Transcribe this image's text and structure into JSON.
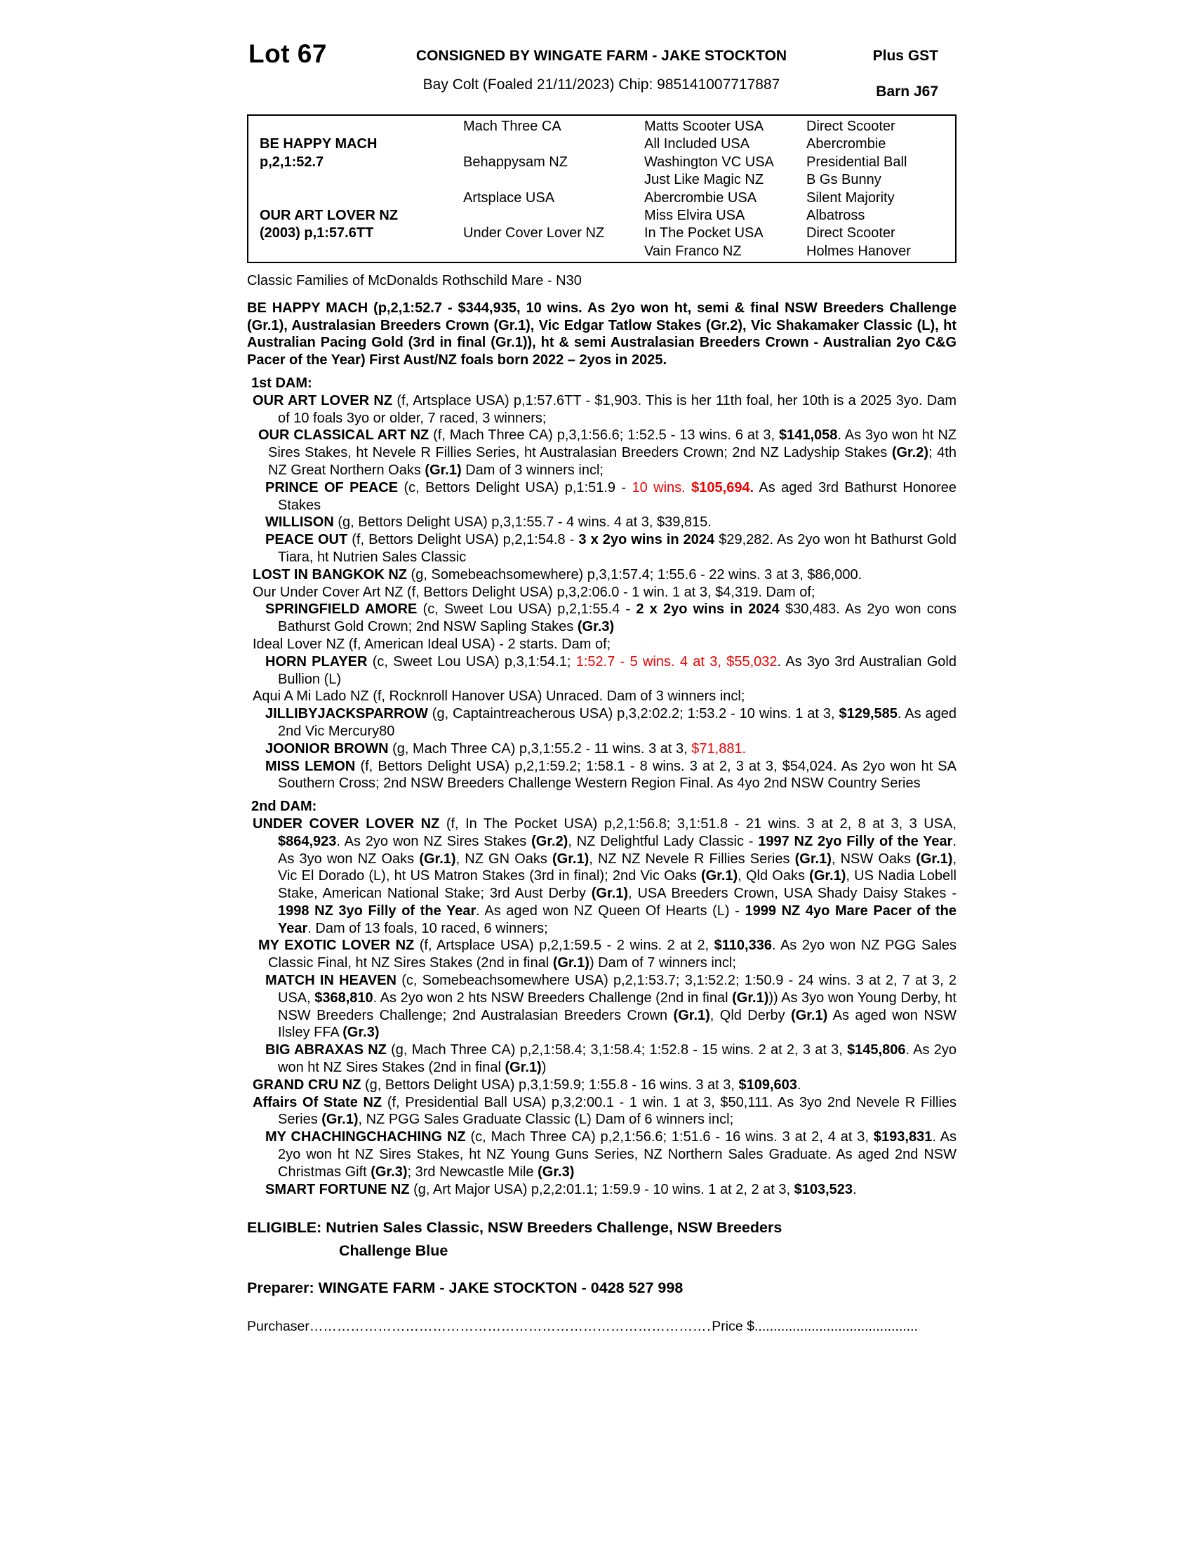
{
  "header": {
    "lot": "Lot 67",
    "consigned": "CONSIGNED BY WINGATE FARM - JAKE STOCKTON",
    "plus_gst": "Plus GST",
    "description": "Bay Colt (Foaled 21/11/2023) Chip: 985141007717887",
    "barn": "Barn J67"
  },
  "colors": {
    "accent_red": "#ee0000",
    "text": "#000000"
  },
  "pedigree_table": {
    "sire": {
      "name": "BE HAPPY MACH",
      "record": "p,2,1:52.7"
    },
    "dam": {
      "name": "OUR ART LOVER NZ",
      "record": "(2003) p,1:57.6TT"
    },
    "gen2": [
      "Mach Three CA",
      "Behappysam NZ",
      "Artsplace USA",
      "Under Cover Lover NZ"
    ],
    "gen3": [
      "Matts Scooter USA",
      "All Included USA",
      "Washington VC USA",
      "Just Like Magic NZ",
      "Abercrombie USA",
      "Miss Elvira USA",
      "In The Pocket USA",
      "Vain Franco NZ"
    ],
    "gen4": [
      "Direct Scooter",
      "Abercrombie",
      "Presidential Ball",
      "B Gs Bunny",
      "Silent Majority",
      "Albatross",
      "Direct Scooter",
      "Holmes Hanover"
    ]
  },
  "family_note": "Classic Families of McDonalds Rothschild Mare - N30",
  "sire_paragraph": "BE HAPPY MACH (p,2,1:52.7 - $344,935, 10 wins. As 2yo won ht, semi & final NSW Breeders Challenge (Gr.1), Australasian Breeders Crown (Gr.1), Vic Edgar Tatlow Stakes (Gr.2), Vic Shakamaker Classic (L), ht Australian Pacing Gold (3rd in final (Gr.1)), ht & semi Australasian Breeders Crown - Australian 2yo C&G Pacer of the Year) First Aust/NZ foals born 2022 – 2yos in 2025.",
  "notes": [
    {
      "type": "heading",
      "text": "1st DAM:"
    },
    {
      "type": "para",
      "indent": 0,
      "segments": [
        {
          "t": "OUR ART LOVER NZ ",
          "b": true
        },
        {
          "t": "(f, Artsplace USA) p,1:57.6TT - $1,903. This is her 11th foal, her 10th is a 2025 3yo. Dam of 10 foals 3yo or older, 7 raced, 3 winners;"
        }
      ]
    },
    {
      "type": "para",
      "indent": 1,
      "segments": [
        {
          "t": "OUR CLASSICAL ART NZ ",
          "b": true
        },
        {
          "t": "(f, Mach Three CA) p,3,1:56.6; 1:52.5 - 13 wins. 6 at 3, "
        },
        {
          "t": "$141,058",
          "b": true
        },
        {
          "t": ". As 3yo won ht NZ Sires Stakes, ht Nevele R Fillies Series, ht Australasian Breeders Crown; 2nd NZ Ladyship Stakes "
        },
        {
          "t": "(Gr.2)",
          "b": true
        },
        {
          "t": "; 4th NZ Great Northern Oaks "
        },
        {
          "t": "(Gr.1)",
          "b": true
        },
        {
          "t": "  Dam of 3 winners incl;"
        }
      ]
    },
    {
      "type": "para",
      "indent": 2,
      "segments": [
        {
          "t": "PRINCE OF PEACE ",
          "b": true
        },
        {
          "t": "(c, Bettors Delight USA) p,1:51.9 - "
        },
        {
          "t": "10 wins. ",
          "r": true
        },
        {
          "t": "$105,694.",
          "r": true,
          "b": true
        },
        {
          "t": " As aged 3rd Bathurst Honoree Stakes"
        }
      ]
    },
    {
      "type": "para",
      "indent": 2,
      "segments": [
        {
          "t": "WILLISON ",
          "b": true
        },
        {
          "t": "(g, Bettors Delight USA) p,3,1:55.7 - 4 wins. 4 at 3, $39,815."
        }
      ]
    },
    {
      "type": "para",
      "indent": 2,
      "segments": [
        {
          "t": "PEACE OUT ",
          "b": true
        },
        {
          "t": "(f, Bettors Delight USA) p,2,1:54.8 - "
        },
        {
          "t": "3 x 2yo wins in 2024",
          "b": true
        },
        {
          "t": "  $29,282. As 2yo won ht Bathurst Gold Tiara, ht Nutrien Sales Classic"
        }
      ]
    },
    {
      "type": "para",
      "indent": 0,
      "segments": [
        {
          "t": "LOST IN BANGKOK NZ ",
          "b": true
        },
        {
          "t": "(g, Somebeachsomewhere) p,3,1:57.4; 1:55.6 - 22 wins. 3 at 3, $86,000."
        }
      ]
    },
    {
      "type": "para",
      "indent": 0,
      "segments": [
        {
          "t": "Our Under Cover Art NZ (f, Bettors Delight USA) p,3,2:06.0 - 1 win. 1 at 3, $4,319. Dam of;"
        }
      ]
    },
    {
      "type": "para",
      "indent": 2,
      "segments": [
        {
          "t": "SPRINGFIELD AMORE ",
          "b": true
        },
        {
          "t": "(c, Sweet Lou USA) p,2,1:55.4 - "
        },
        {
          "t": "2 x 2yo wins in 2024",
          "b": true
        },
        {
          "t": " $30,483. As 2yo won cons Bathurst Gold Crown; 2nd NSW Sapling Stakes "
        },
        {
          "t": "(Gr.3)",
          "b": true
        }
      ]
    },
    {
      "type": "para",
      "indent": 0,
      "segments": [
        {
          "t": "Ideal Lover NZ (f, American Ideal USA) - 2 starts. Dam of;"
        }
      ]
    },
    {
      "type": "para",
      "indent": 2,
      "segments": [
        {
          "t": "HORN PLAYER ",
          "b": true
        },
        {
          "t": "(c, Sweet Lou USA) p,3,1:54.1; "
        },
        {
          "t": "1:52.7 - 5 wins. 4 at 3, $55,032",
          "r": true
        },
        {
          "t": ". As 3yo 3rd Australian Gold Bullion (L)"
        }
      ]
    },
    {
      "type": "para",
      "indent": 0,
      "segments": [
        {
          "t": "Aqui A Mi Lado NZ (f, Rocknroll Hanover USA) Unraced. Dam of 3 winners incl;"
        }
      ]
    },
    {
      "type": "para",
      "indent": 2,
      "segments": [
        {
          "t": "JILLIBYJACKSPARROW ",
          "b": true
        },
        {
          "t": "(g, Captaintreacherous USA) p,3,2:02.2; 1:53.2 - 10 wins. 1 at 3, "
        },
        {
          "t": "$129,585",
          "b": true
        },
        {
          "t": ". As aged 2nd Vic Mercury80"
        }
      ]
    },
    {
      "type": "para",
      "indent": 2,
      "segments": [
        {
          "t": "JOONIOR BROWN ",
          "b": true
        },
        {
          "t": "(g, Mach Three CA) p,3,1:55.2 - 11 wins. 3 at 3, "
        },
        {
          "t": "$71,881.",
          "r": true
        }
      ]
    },
    {
      "type": "para",
      "indent": 2,
      "segments": [
        {
          "t": "MISS LEMON ",
          "b": true
        },
        {
          "t": "(f, Bettors Delight USA) p,2,1:59.2; 1:58.1 - 8 wins. 3 at 2, 3 at 3, $54,024. As 2yo won ht SA Southern Cross; 2nd NSW Breeders Challenge Western Region Final. As 4yo 2nd NSW Country Series"
        }
      ]
    },
    {
      "type": "heading",
      "text": "2nd DAM:"
    },
    {
      "type": "para",
      "indent": 0,
      "segments": [
        {
          "t": "UNDER COVER LOVER NZ ",
          "b": true
        },
        {
          "t": "(f, In The Pocket USA) p,2,1:56.8; 3,1:51.8 - 21 wins. 3 at 2, 8 at 3, 3 USA, "
        },
        {
          "t": "$864,923",
          "b": true
        },
        {
          "t": ". As 2yo won NZ Sires Stakes "
        },
        {
          "t": "(Gr.2)",
          "b": true
        },
        {
          "t": ", NZ Delightful Lady Classic - "
        },
        {
          "t": "1997 NZ 2yo Filly of the Year",
          "b": true
        },
        {
          "t": ". As 3yo won NZ Oaks "
        },
        {
          "t": "(Gr.1)",
          "b": true
        },
        {
          "t": ", NZ GN Oaks "
        },
        {
          "t": "(Gr.1)",
          "b": true
        },
        {
          "t": ", NZ NZ Nevele R Fillies Series "
        },
        {
          "t": "(Gr.1)",
          "b": true
        },
        {
          "t": ", NSW Oaks "
        },
        {
          "t": "(Gr.1)",
          "b": true
        },
        {
          "t": ", Vic El Dorado (L), ht US Matron Stakes (3rd in final); 2nd Vic Oaks "
        },
        {
          "t": "(Gr.1)",
          "b": true
        },
        {
          "t": ", Qld Oaks "
        },
        {
          "t": "(Gr.1)",
          "b": true
        },
        {
          "t": ", US Nadia Lobell Stake, American National Stake; 3rd Aust Derby "
        },
        {
          "t": "(Gr.1)",
          "b": true
        },
        {
          "t": ", USA Breeders Crown, USA Shady Daisy Stakes - "
        },
        {
          "t": "1998 NZ 3yo Filly of the Year",
          "b": true
        },
        {
          "t": ". As aged won NZ Queen Of Hearts (L) - "
        },
        {
          "t": "1999 NZ 4yo Mare Pacer of the Year",
          "b": true
        },
        {
          "t": ". Dam of 13 foals, 10 raced, 6 winners;"
        }
      ]
    },
    {
      "type": "para",
      "indent": 1,
      "segments": [
        {
          "t": "MY EXOTIC LOVER NZ ",
          "b": true
        },
        {
          "t": "(f, Artsplace USA) p,2,1:59.5 - 2 wins. 2 at 2, "
        },
        {
          "t": "$110,336",
          "b": true
        },
        {
          "t": ". As 2yo won NZ PGG Sales Classic Final, ht NZ Sires Stakes (2nd in final "
        },
        {
          "t": "(Gr.1)",
          "b": true
        },
        {
          "t": ") Dam of 7 winners incl;"
        }
      ]
    },
    {
      "type": "para",
      "indent": 2,
      "segments": [
        {
          "t": "MATCH IN HEAVEN ",
          "b": true
        },
        {
          "t": "(c, Somebeachsomewhere USA) p,2,1:53.7; 3,1:52.2; 1:50.9 - 24 wins. 3 at 2, 7 at 3, 2 USA, "
        },
        {
          "t": "$368,810",
          "b": true
        },
        {
          "t": ". As 2yo won 2 hts NSW Breeders Challenge (2nd in final "
        },
        {
          "t": "(Gr.1)",
          "b": true
        },
        {
          "t": ")) As 3yo won Young Derby, ht NSW Breeders Challenge; 2nd Australasian Breeders Crown "
        },
        {
          "t": "(Gr.1)",
          "b": true
        },
        {
          "t": ", Qld Derby "
        },
        {
          "t": "(Gr.1)",
          "b": true
        },
        {
          "t": " As aged won NSW Ilsley FFA "
        },
        {
          "t": "(Gr.3)",
          "b": true
        }
      ]
    },
    {
      "type": "para",
      "indent": 2,
      "segments": [
        {
          "t": "BIG ABRAXAS NZ ",
          "b": true
        },
        {
          "t": "(g, Mach Three CA) p,2,1:58.4; 3,1:58.4; 1:52.8 - 15 wins. 2 at 2, 3 at 3, "
        },
        {
          "t": "$145,806",
          "b": true
        },
        {
          "t": ". As 2yo won ht NZ Sires Stakes (2nd in final "
        },
        {
          "t": "(Gr.1)",
          "b": true
        },
        {
          "t": ")"
        }
      ]
    },
    {
      "type": "para",
      "indent": 0,
      "segments": [
        {
          "t": "GRAND CRU NZ ",
          "b": true
        },
        {
          "t": "(g, Bettors Delight USA) p,3,1:59.9; 1:55.8 - 16 wins. 3 at 3, "
        },
        {
          "t": "$109,603",
          "b": true
        },
        {
          "t": "."
        }
      ]
    },
    {
      "type": "para",
      "indent": 0,
      "segments": [
        {
          "t": "Affairs Of State NZ ",
          "b": true
        },
        {
          "t": "(f, Presidential Ball USA) p,3,2:00.1 - 1 win. 1 at 3, $50,111. As 3yo 2nd Nevele R Fillies Series "
        },
        {
          "t": "(Gr.1)",
          "b": true
        },
        {
          "t": ", NZ PGG Sales Graduate Classic (L) Dam of 6 winners incl;"
        }
      ]
    },
    {
      "type": "para",
      "indent": 2,
      "segments": [
        {
          "t": "MY CHACHINGCHACHING NZ ",
          "b": true
        },
        {
          "t": "(c, Mach Three CA) p,2,1:56.6; 1:51.6 - 16 wins. 3 at 2, 4 at 3, "
        },
        {
          "t": "$193,831",
          "b": true
        },
        {
          "t": ". As 2yo won ht NZ Sires Stakes, ht NZ Young Guns Series, NZ Northern Sales Graduate. As aged 2nd NSW Christmas Gift "
        },
        {
          "t": "(Gr.3)",
          "b": true
        },
        {
          "t": "; 3rd Newcastle Mile "
        },
        {
          "t": "(Gr.3)",
          "b": true
        }
      ]
    },
    {
      "type": "para",
      "indent": 2,
      "segments": [
        {
          "t": "SMART FORTUNE NZ ",
          "b": true
        },
        {
          "t": "(g, Art Major USA) p,2,2:01.1; 1:59.9 - 10 wins. 1 at 2, 2 at 3, "
        },
        {
          "t": "$103,523",
          "b": true
        },
        {
          "t": "."
        }
      ]
    }
  ],
  "eligible": {
    "line1": "ELIGIBLE: Nutrien Sales Classic, NSW Breeders Challenge, NSW Breeders",
    "line2": "Challenge Blue"
  },
  "preparer": "Preparer: WINGATE FARM - JAKE STOCKTON - 0428 527 998",
  "purchaser": {
    "label": "Purchaser",
    "dots1": "………………………………………………………………………………………………………………………",
    "price_label": "Price $",
    "dots2": "...............................................................……………………"
  }
}
